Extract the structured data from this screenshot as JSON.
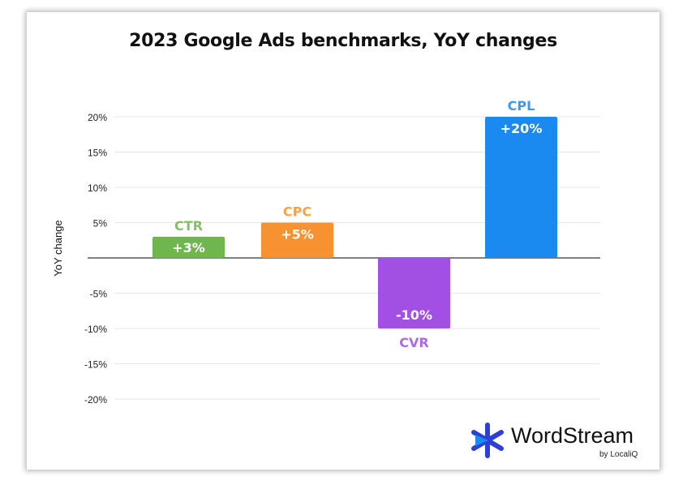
{
  "chart_data": {
    "type": "bar",
    "title": "2023 Google Ads benchmarks, YoY changes",
    "ylabel": "YoY change",
    "xlabel": "",
    "ylim": [
      -20,
      20
    ],
    "yticks": [
      20,
      15,
      10,
      5,
      0,
      -5,
      -10,
      -15,
      -20
    ],
    "ytick_labels": [
      "20%",
      "15%",
      "10%",
      "5%",
      "",
      "-5%",
      "-10%",
      "-15%",
      "-20%"
    ],
    "grid": true,
    "categories": [
      "CTR",
      "CPC",
      "CVR",
      "CPL"
    ],
    "values": [
      3,
      5,
      -10,
      20
    ],
    "data_labels": [
      "+3%",
      "+5%",
      "-10%",
      "+20%"
    ],
    "colors": [
      "#6fb64e",
      "#f6922f",
      "#a24fe3",
      "#1a8af0"
    ]
  },
  "branding": {
    "logo_name": "WordStream",
    "logo_sub": "by LocaliQ",
    "logo_color": "#2c3fd6"
  }
}
